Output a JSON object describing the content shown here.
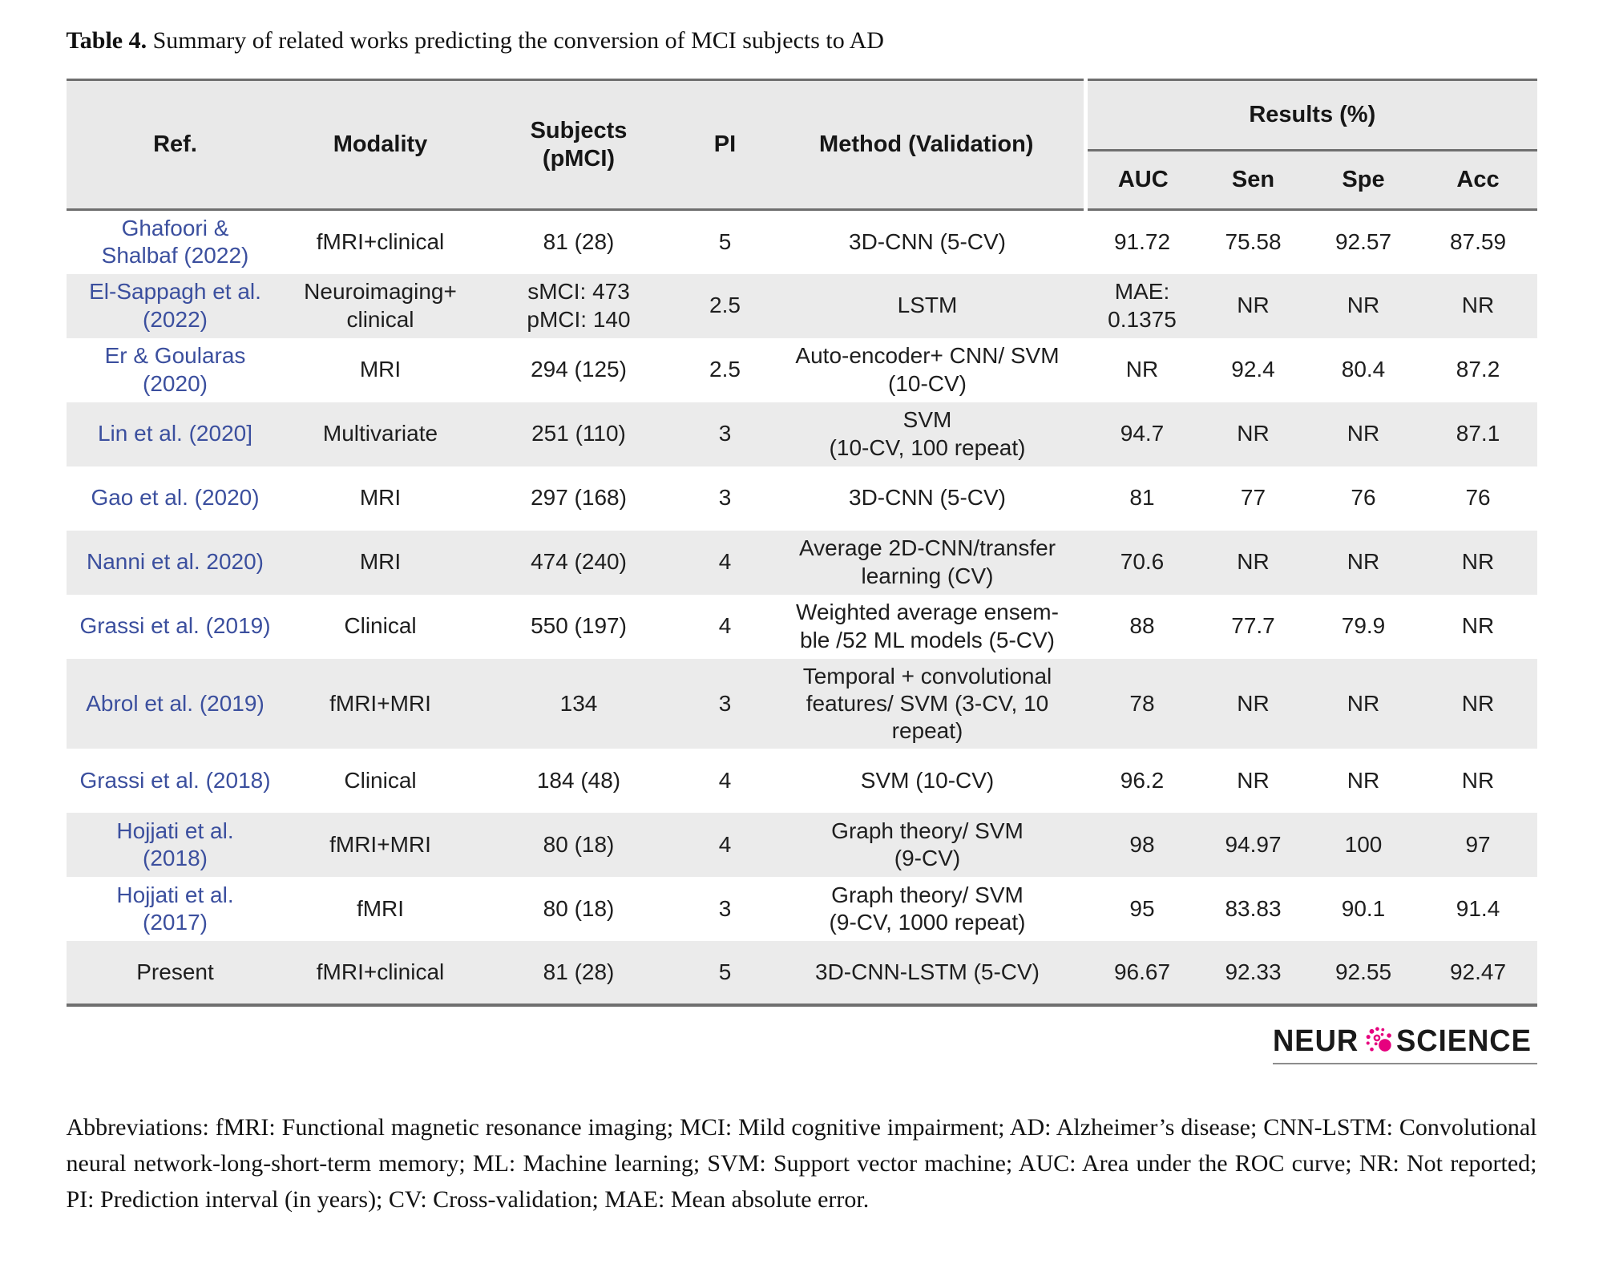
{
  "title": {
    "label": "Table 4.",
    "text": "Summary of related works predicting the conversion of MCI subjects to AD"
  },
  "table": {
    "headers": {
      "ref": "Ref.",
      "modality": "Modality",
      "subjects": "Subjects\n(pMCI)",
      "pi": "PI",
      "method": "Method (Validation)",
      "results_group": "Results (%)",
      "auc": "AUC",
      "sen": "Sen",
      "spe": "Spe",
      "acc": "Acc"
    },
    "rows": [
      {
        "ref": "Ghafoori &\nShalbaf (2022)",
        "link": true,
        "modality": "fMRI+clinical",
        "subjects": "81 (28)",
        "pi": "5",
        "method": "3D-CNN (5-CV)",
        "auc": "91.72",
        "sen": "75.58",
        "spe": "92.57",
        "acc": "87.59"
      },
      {
        "ref": "El-Sappagh et al.\n(2022)",
        "link": true,
        "modality": "Neuroimaging+\nclinical",
        "subjects": "sMCI: 473\npMCI: 140",
        "pi": "2.5",
        "method": "LSTM",
        "auc": "MAE:\n0.1375",
        "sen": "NR",
        "spe": "NR",
        "acc": "NR"
      },
      {
        "ref": "Er & Goularas\n(2020)",
        "link": true,
        "modality": "MRI",
        "subjects": "294 (125)",
        "pi": "2.5",
        "method": "Auto-encoder+ CNN/ SVM\n(10-CV)",
        "auc": "NR",
        "sen": "92.4",
        "spe": "80.4",
        "acc": "87.2"
      },
      {
        "ref": "Lin et al. (2020]",
        "link": true,
        "modality": "Multivariate",
        "subjects": "251 (110)",
        "pi": "3",
        "method": "SVM\n(10-CV, 100 repeat)",
        "auc": "94.7",
        "sen": "NR",
        "spe": "NR",
        "acc": "87.1"
      },
      {
        "ref": "Gao et al. (2020)",
        "link": true,
        "modality": "MRI",
        "subjects": "297 (168)",
        "pi": "3",
        "method": "3D-CNN (5-CV)",
        "auc": "81",
        "sen": "77",
        "spe": "76",
        "acc": "76"
      },
      {
        "ref": "Nanni et al. 2020)",
        "link": true,
        "modality": "MRI",
        "subjects": "474 (240)",
        "pi": "4",
        "method": "Average 2D-CNN/transfer\nlearning (CV)",
        "auc": "70.6",
        "sen": "NR",
        "spe": "NR",
        "acc": "NR"
      },
      {
        "ref": "Grassi et al. (2019)",
        "link": true,
        "modality": "Clinical",
        "subjects": "550 (197)",
        "pi": "4",
        "method": "Weighted average ensem-\nble /52 ML models (5-CV)",
        "auc": "88",
        "sen": "77.7",
        "spe": "79.9",
        "acc": "NR"
      },
      {
        "ref": "Abrol et al. (2019)",
        "link": true,
        "modality": "fMRI+MRI",
        "subjects": "134",
        "pi": "3",
        "method": "Temporal + convolutional\nfeatures/ SVM (3-CV, 10\nrepeat)",
        "auc": "78",
        "sen": "NR",
        "spe": "NR",
        "acc": "NR"
      },
      {
        "ref": "Grassi et al. (2018)",
        "link": true,
        "modality": "Clinical",
        "subjects": "184 (48)",
        "pi": "4",
        "method": "SVM (10-CV)",
        "auc": "96.2",
        "sen": "NR",
        "spe": "NR",
        "acc": "NR"
      },
      {
        "ref": "Hojjati et al.\n(2018)",
        "link": true,
        "modality": "fMRI+MRI",
        "subjects": "80 (18)",
        "pi": "4",
        "method": "Graph theory/ SVM\n(9-CV)",
        "auc": "98",
        "sen": "94.97",
        "spe": "100",
        "acc": "97"
      },
      {
        "ref": "Hojjati et al.\n(2017)",
        "link": true,
        "modality": "fMRI",
        "subjects": "80 (18)",
        "pi": "3",
        "method": "Graph theory/ SVM\n(9-CV, 1000 repeat)",
        "auc": "95",
        "sen": "83.83",
        "spe": "90.1",
        "acc": "91.4"
      },
      {
        "ref": "Present",
        "link": false,
        "modality": "fMRI+clinical",
        "subjects": "81 (28)",
        "pi": "5",
        "method": "3D-CNN-LSTM (5-CV)",
        "auc": "96.67",
        "sen": "92.33",
        "spe": "92.55",
        "acc": "92.47"
      }
    ]
  },
  "logo": {
    "prefix": "NEUR",
    "suffix": "SCIENCE",
    "icon": "neuron-dot-icon"
  },
  "abbreviations": "Abbreviations: fMRI: Functional magnetic resonance imaging; MCI: Mild cognitive impairment; AD: Alzheimer’s disease; CNN-LSTM: Convolutional neural network-long-short-term memory; ML: Machine learning; SVM: Support vector machine; AUC: Area under the ROC curve; NR: Not reported; PI: Prediction interval (in years); CV: Cross-validation; MAE: Mean absolute error.",
  "colors": {
    "accent_link": "#3b4f9e",
    "logo_pink": "#e6007e",
    "header_bg": "#e9e9e9",
    "row_shade_bg": "#ebebeb",
    "border": "#6f6f6f"
  }
}
